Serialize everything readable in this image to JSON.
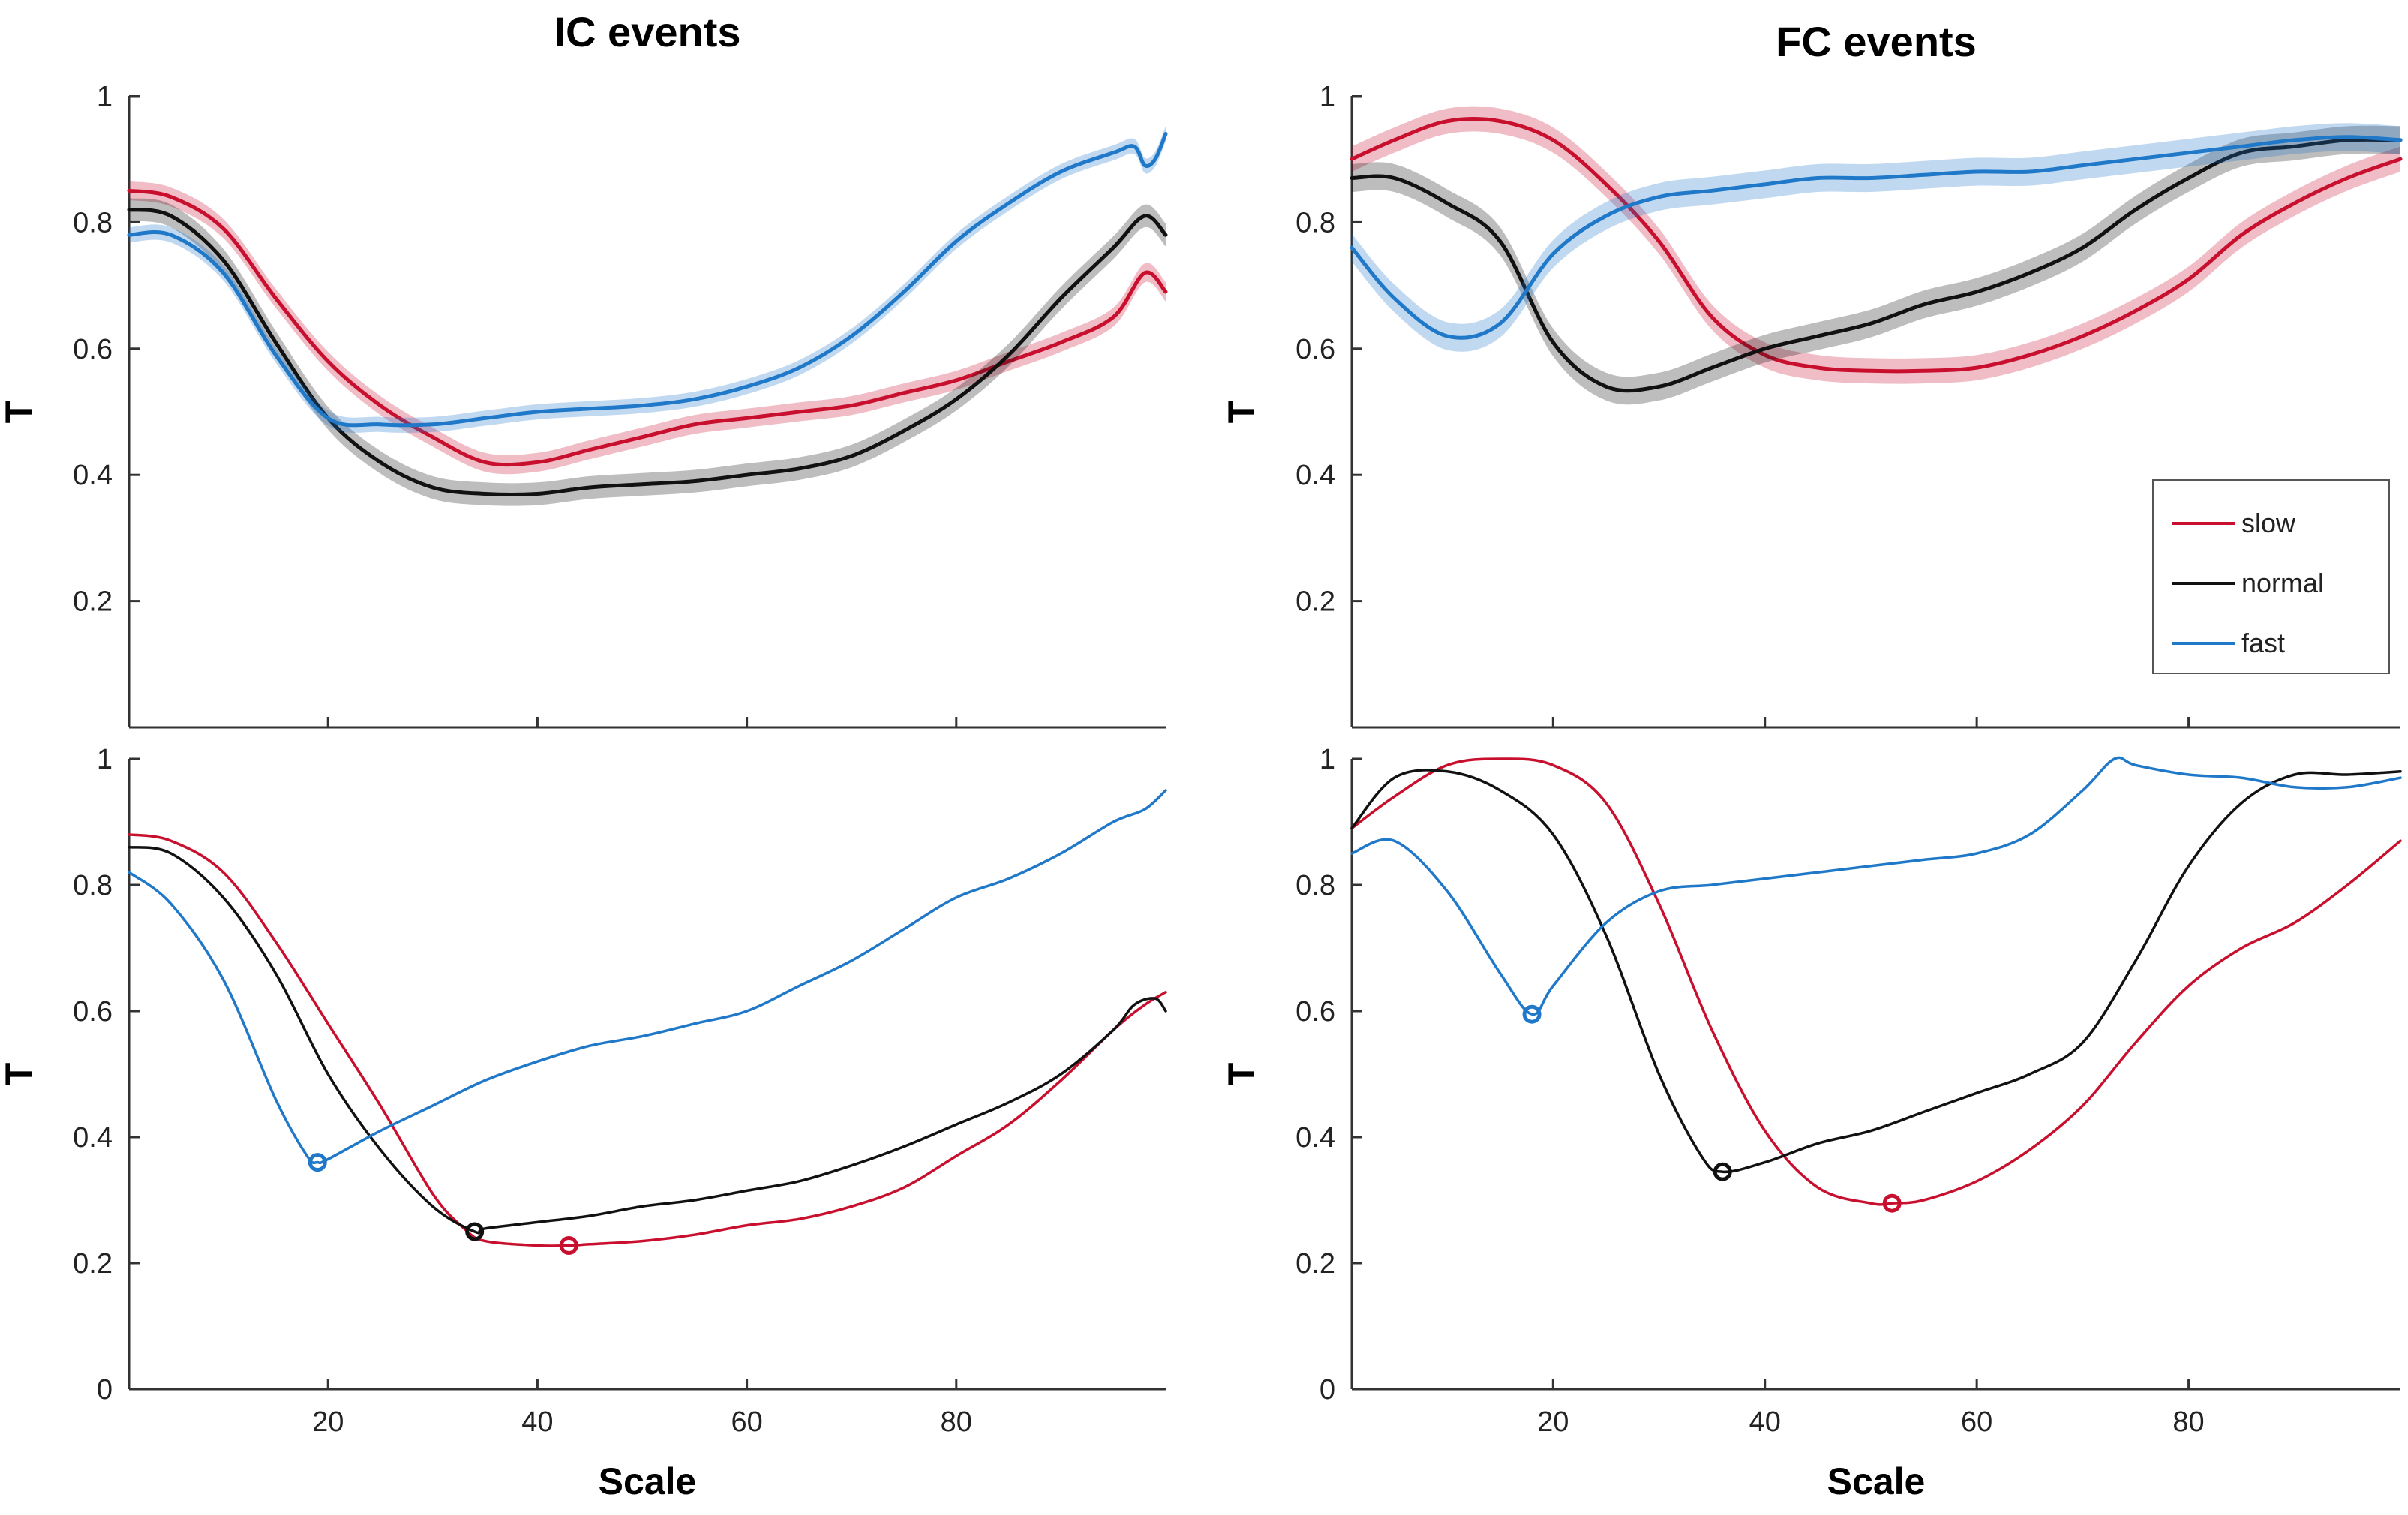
{
  "colors": {
    "slow": "#c8102e",
    "normal": "#111111",
    "fast": "#1f78c8"
  },
  "chart_data": [
    {
      "type": "line",
      "panel": "top-left",
      "title": "IC events",
      "xlabel": "",
      "ylabel": "T",
      "xlim": [
        1,
        100
      ],
      "ylim": [
        0,
        1
      ],
      "yticks": [
        0.2,
        0.4,
        0.6,
        0.8,
        1
      ],
      "ytick_labels": [
        "0.2",
        "0.4",
        "0.6",
        "0.8",
        "1"
      ],
      "xticks": [
        20,
        40,
        60,
        80
      ],
      "xtick_labels": [],
      "shaded_band": true,
      "series": [
        {
          "name": "slow",
          "color_key": "slow",
          "band": 0.015,
          "x": [
            1,
            5,
            10,
            15,
            20,
            25,
            30,
            35,
            40,
            45,
            50,
            55,
            60,
            65,
            70,
            75,
            80,
            85,
            90,
            95,
            98,
            100
          ],
          "y": [
            0.85,
            0.84,
            0.79,
            0.68,
            0.58,
            0.51,
            0.46,
            0.42,
            0.42,
            0.44,
            0.46,
            0.48,
            0.49,
            0.5,
            0.51,
            0.53,
            0.55,
            0.58,
            0.61,
            0.65,
            0.72,
            0.69
          ]
        },
        {
          "name": "normal",
          "color_key": "normal",
          "band": 0.018,
          "x": [
            1,
            5,
            10,
            15,
            20,
            25,
            30,
            35,
            40,
            45,
            50,
            55,
            60,
            65,
            70,
            75,
            80,
            85,
            90,
            95,
            98,
            100
          ],
          "y": [
            0.82,
            0.81,
            0.74,
            0.61,
            0.49,
            0.42,
            0.38,
            0.37,
            0.37,
            0.38,
            0.385,
            0.39,
            0.4,
            0.41,
            0.43,
            0.47,
            0.52,
            0.59,
            0.68,
            0.76,
            0.81,
            0.78
          ]
        },
        {
          "name": "fast",
          "color_key": "fast",
          "band": 0.012,
          "x": [
            1,
            5,
            10,
            15,
            20,
            25,
            30,
            35,
            40,
            45,
            50,
            55,
            60,
            65,
            70,
            75,
            80,
            85,
            90,
            95,
            97,
            98,
            99,
            100
          ],
          "y": [
            0.78,
            0.78,
            0.72,
            0.59,
            0.49,
            0.48,
            0.48,
            0.49,
            0.5,
            0.505,
            0.51,
            0.52,
            0.54,
            0.57,
            0.62,
            0.69,
            0.77,
            0.83,
            0.88,
            0.91,
            0.92,
            0.89,
            0.9,
            0.94
          ]
        }
      ]
    },
    {
      "type": "line",
      "panel": "top-right",
      "title": "FC events",
      "xlabel": "",
      "ylabel": "T",
      "xlim": [
        1,
        100
      ],
      "ylim": [
        0,
        1
      ],
      "yticks": [
        0.2,
        0.4,
        0.6,
        0.8,
        1
      ],
      "ytick_labels": [
        "0.2",
        "0.4",
        "0.6",
        "0.8",
        "1"
      ],
      "xticks": [
        20,
        40,
        60,
        80
      ],
      "xtick_labels": [],
      "shaded_band": true,
      "legend": {
        "position": "lower-right",
        "entries": [
          "slow",
          "normal",
          "fast"
        ]
      },
      "series": [
        {
          "name": "slow",
          "color_key": "slow",
          "band": 0.02,
          "x": [
            1,
            5,
            10,
            15,
            20,
            25,
            30,
            35,
            40,
            45,
            50,
            55,
            60,
            65,
            70,
            75,
            80,
            85,
            90,
            95,
            100
          ],
          "y": [
            0.9,
            0.93,
            0.96,
            0.96,
            0.93,
            0.86,
            0.77,
            0.65,
            0.59,
            0.57,
            0.565,
            0.565,
            0.57,
            0.59,
            0.62,
            0.66,
            0.71,
            0.78,
            0.83,
            0.87,
            0.9
          ]
        },
        {
          "name": "normal",
          "color_key": "normal",
          "band": 0.022,
          "x": [
            1,
            5,
            10,
            15,
            20,
            25,
            30,
            35,
            40,
            45,
            50,
            55,
            60,
            65,
            70,
            75,
            80,
            85,
            90,
            95,
            100
          ],
          "y": [
            0.87,
            0.87,
            0.83,
            0.77,
            0.61,
            0.54,
            0.54,
            0.57,
            0.6,
            0.62,
            0.64,
            0.67,
            0.69,
            0.72,
            0.76,
            0.82,
            0.87,
            0.91,
            0.92,
            0.93,
            0.93
          ]
        },
        {
          "name": "fast",
          "color_key": "fast",
          "band": 0.022,
          "x": [
            1,
            5,
            10,
            15,
            20,
            25,
            30,
            35,
            40,
            45,
            50,
            55,
            60,
            65,
            70,
            75,
            80,
            85,
            90,
            95,
            100
          ],
          "y": [
            0.76,
            0.68,
            0.62,
            0.64,
            0.75,
            0.81,
            0.84,
            0.85,
            0.86,
            0.87,
            0.87,
            0.875,
            0.88,
            0.88,
            0.89,
            0.9,
            0.91,
            0.92,
            0.93,
            0.935,
            0.93
          ]
        }
      ]
    },
    {
      "type": "line",
      "panel": "bottom-left",
      "title": "",
      "xlabel": "Scale",
      "ylabel": "T",
      "xlim": [
        1,
        100
      ],
      "ylim": [
        0,
        1
      ],
      "yticks": [
        0,
        0.2,
        0.4,
        0.6,
        0.8,
        1
      ],
      "ytick_labels": [
        "0",
        "0.2",
        "0.4",
        "0.6",
        "0.8",
        "1"
      ],
      "xticks": [
        20,
        40,
        60,
        80
      ],
      "xtick_labels": [
        "20",
        "40",
        "60",
        "80"
      ],
      "shaded_band": false,
      "series": [
        {
          "name": "slow",
          "color_key": "slow",
          "x": [
            1,
            5,
            10,
            15,
            20,
            25,
            30,
            33,
            35,
            40,
            43,
            45,
            50,
            55,
            60,
            65,
            70,
            75,
            80,
            85,
            90,
            95,
            98,
            100
          ],
          "y": [
            0.88,
            0.87,
            0.82,
            0.71,
            0.58,
            0.45,
            0.31,
            0.255,
            0.235,
            0.228,
            0.228,
            0.23,
            0.235,
            0.245,
            0.26,
            0.27,
            0.29,
            0.32,
            0.37,
            0.42,
            0.49,
            0.57,
            0.61,
            0.63
          ]
        },
        {
          "name": "normal",
          "color_key": "normal",
          "x": [
            1,
            5,
            10,
            15,
            20,
            25,
            30,
            34,
            35,
            40,
            45,
            50,
            55,
            60,
            65,
            70,
            75,
            80,
            85,
            90,
            95,
            97,
            99,
            100
          ],
          "y": [
            0.86,
            0.85,
            0.78,
            0.66,
            0.5,
            0.38,
            0.29,
            0.25,
            0.255,
            0.265,
            0.275,
            0.29,
            0.3,
            0.315,
            0.33,
            0.355,
            0.385,
            0.42,
            0.455,
            0.5,
            0.57,
            0.61,
            0.62,
            0.6
          ]
        },
        {
          "name": "fast",
          "color_key": "fast",
          "x": [
            1,
            5,
            10,
            15,
            18,
            19,
            20,
            25,
            30,
            35,
            40,
            45,
            50,
            55,
            60,
            65,
            70,
            75,
            80,
            85,
            90,
            95,
            98,
            100
          ],
          "y": [
            0.82,
            0.77,
            0.65,
            0.46,
            0.37,
            0.36,
            0.365,
            0.41,
            0.45,
            0.49,
            0.52,
            0.545,
            0.56,
            0.58,
            0.6,
            0.64,
            0.68,
            0.73,
            0.78,
            0.81,
            0.85,
            0.9,
            0.92,
            0.95
          ]
        }
      ],
      "minima": [
        {
          "series": "fast",
          "x": 19,
          "y": 0.36
        },
        {
          "series": "normal",
          "x": 34,
          "y": 0.25
        },
        {
          "series": "slow",
          "x": 43,
          "y": 0.228
        }
      ]
    },
    {
      "type": "line",
      "panel": "bottom-right",
      "title": "",
      "xlabel": "Scale",
      "ylabel": "T",
      "xlim": [
        1,
        100
      ],
      "ylim": [
        0,
        1
      ],
      "yticks": [
        0,
        0.2,
        0.4,
        0.6,
        0.8,
        1
      ],
      "ytick_labels": [
        "0",
        "0.2",
        "0.4",
        "0.6",
        "0.8",
        "1"
      ],
      "xticks": [
        20,
        40,
        60,
        80
      ],
      "xtick_labels": [
        "20",
        "40",
        "60",
        "80"
      ],
      "shaded_band": false,
      "series": [
        {
          "name": "slow",
          "color_key": "slow",
          "x": [
            1,
            5,
            10,
            15,
            20,
            25,
            30,
            35,
            40,
            45,
            50,
            52,
            55,
            60,
            65,
            70,
            75,
            80,
            85,
            90,
            95,
            100
          ],
          "y": [
            0.89,
            0.94,
            0.99,
            1.0,
            0.99,
            0.93,
            0.77,
            0.57,
            0.41,
            0.32,
            0.295,
            0.295,
            0.3,
            0.33,
            0.38,
            0.45,
            0.55,
            0.64,
            0.7,
            0.74,
            0.8,
            0.87
          ]
        },
        {
          "name": "normal",
          "color_key": "normal",
          "x": [
            1,
            5,
            10,
            15,
            20,
            25,
            30,
            34,
            36,
            40,
            45,
            50,
            55,
            60,
            65,
            70,
            75,
            80,
            85,
            90,
            95,
            100
          ],
          "y": [
            0.89,
            0.97,
            0.98,
            0.95,
            0.88,
            0.72,
            0.5,
            0.37,
            0.345,
            0.36,
            0.39,
            0.41,
            0.44,
            0.47,
            0.5,
            0.55,
            0.68,
            0.83,
            0.93,
            0.975,
            0.975,
            0.98
          ]
        },
        {
          "name": "fast",
          "color_key": "fast",
          "x": [
            1,
            5,
            10,
            15,
            18,
            20,
            25,
            30,
            35,
            40,
            45,
            50,
            55,
            60,
            65,
            70,
            73,
            75,
            80,
            85,
            90,
            95,
            100
          ],
          "y": [
            0.85,
            0.87,
            0.79,
            0.66,
            0.595,
            0.64,
            0.74,
            0.79,
            0.8,
            0.81,
            0.82,
            0.83,
            0.84,
            0.85,
            0.88,
            0.95,
            1.0,
            0.99,
            0.975,
            0.97,
            0.955,
            0.955,
            0.97
          ]
        }
      ],
      "minima": [
        {
          "series": "fast",
          "x": 18,
          "y": 0.595
        },
        {
          "series": "normal",
          "x": 36,
          "y": 0.345
        },
        {
          "series": "slow",
          "x": 52,
          "y": 0.295
        }
      ]
    }
  ]
}
